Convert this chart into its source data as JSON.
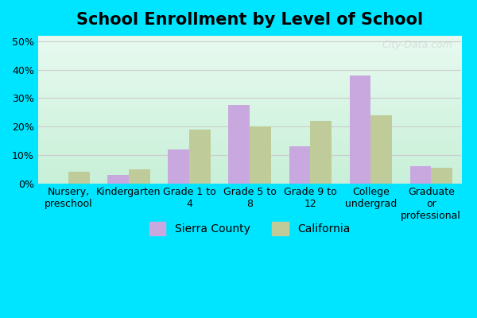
{
  "title": "School Enrollment by Level of School",
  "categories": [
    "Nursery,\npreschool",
    "Kindergarten",
    "Grade 1 to\n4",
    "Grade 5 to\n8",
    "Grade 9 to\n12",
    "College\nundergrad",
    "Graduate\nor\nprofessional"
  ],
  "sierra_county": [
    0.0,
    3.0,
    12.0,
    27.5,
    13.0,
    38.0,
    6.0
  ],
  "california": [
    4.0,
    5.0,
    19.0,
    20.0,
    22.0,
    24.0,
    5.5
  ],
  "sierra_color": "#c9a8e0",
  "california_color": "#bfcc99",
  "background_outer": "#00e5ff",
  "background_inner_top": "#e8faf0",
  "background_inner_bottom": "#c8f0d8",
  "grid_color": "#cccccc",
  "title_fontsize": 15,
  "tick_fontsize": 9,
  "legend_fontsize": 10,
  "bar_width": 0.35,
  "ylim": [
    0,
    52
  ],
  "yticks": [
    0,
    10,
    20,
    30,
    40,
    50
  ],
  "watermark_text": "City-Data.com",
  "legend_sierra": "Sierra County",
  "legend_california": "California"
}
